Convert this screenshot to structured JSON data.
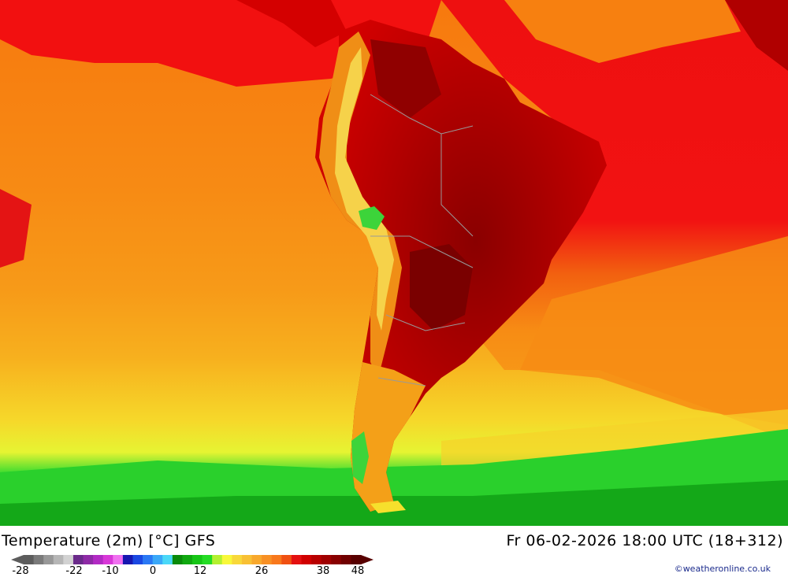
{
  "map": {
    "title": "Temperature (2m) [°C] GFS",
    "valid_time": "Fr 06-02-2026 18:00 UTC (18+312)",
    "credit": "©weatheronline.co.uk",
    "region": "South America",
    "colors": {
      "ocean_north": "#f20c0c",
      "ocean_warm": "#f07e10",
      "ocean_mid": "#f99a16",
      "ocean_cool": "#f7b21e",
      "ocean_yellow": "#f6e02c",
      "ocean_lime": "#c4f43a",
      "ocean_green": "#2ad42c",
      "ocean_deep_green": "#14b818",
      "land_hot": "#d60000",
      "land_very_hot": "#a00000",
      "land_extreme": "#7a0000",
      "andes": "#f08e16",
      "andes_cool": "#f6d24a",
      "highland_green": "#3cd43a",
      "patagonia": "#f4a018",
      "border": "#999999"
    }
  },
  "legend": {
    "ticks": [
      "-28",
      "-22",
      "-10",
      "0",
      "12",
      "26",
      "38",
      "48"
    ],
    "colors": [
      "#5c5c5c",
      "#7a7a7a",
      "#989898",
      "#b6b6b6",
      "#d2d2d2",
      "#6a2a8a",
      "#8e2aa6",
      "#b22ac4",
      "#d838d8",
      "#f070f0",
      "#1616b0",
      "#1a48e2",
      "#2a78f4",
      "#3aa8f8",
      "#4ad8f8",
      "#0a8a0a",
      "#10a810",
      "#16c616",
      "#24dc24",
      "#b4f030",
      "#f8f83a",
      "#f8d83a",
      "#f8c034",
      "#f8a82c",
      "#f89024",
      "#f8781c",
      "#f05012",
      "#e41010",
      "#d00000",
      "#b80000",
      "#a00000",
      "#880000",
      "#700000",
      "#580000"
    ]
  }
}
